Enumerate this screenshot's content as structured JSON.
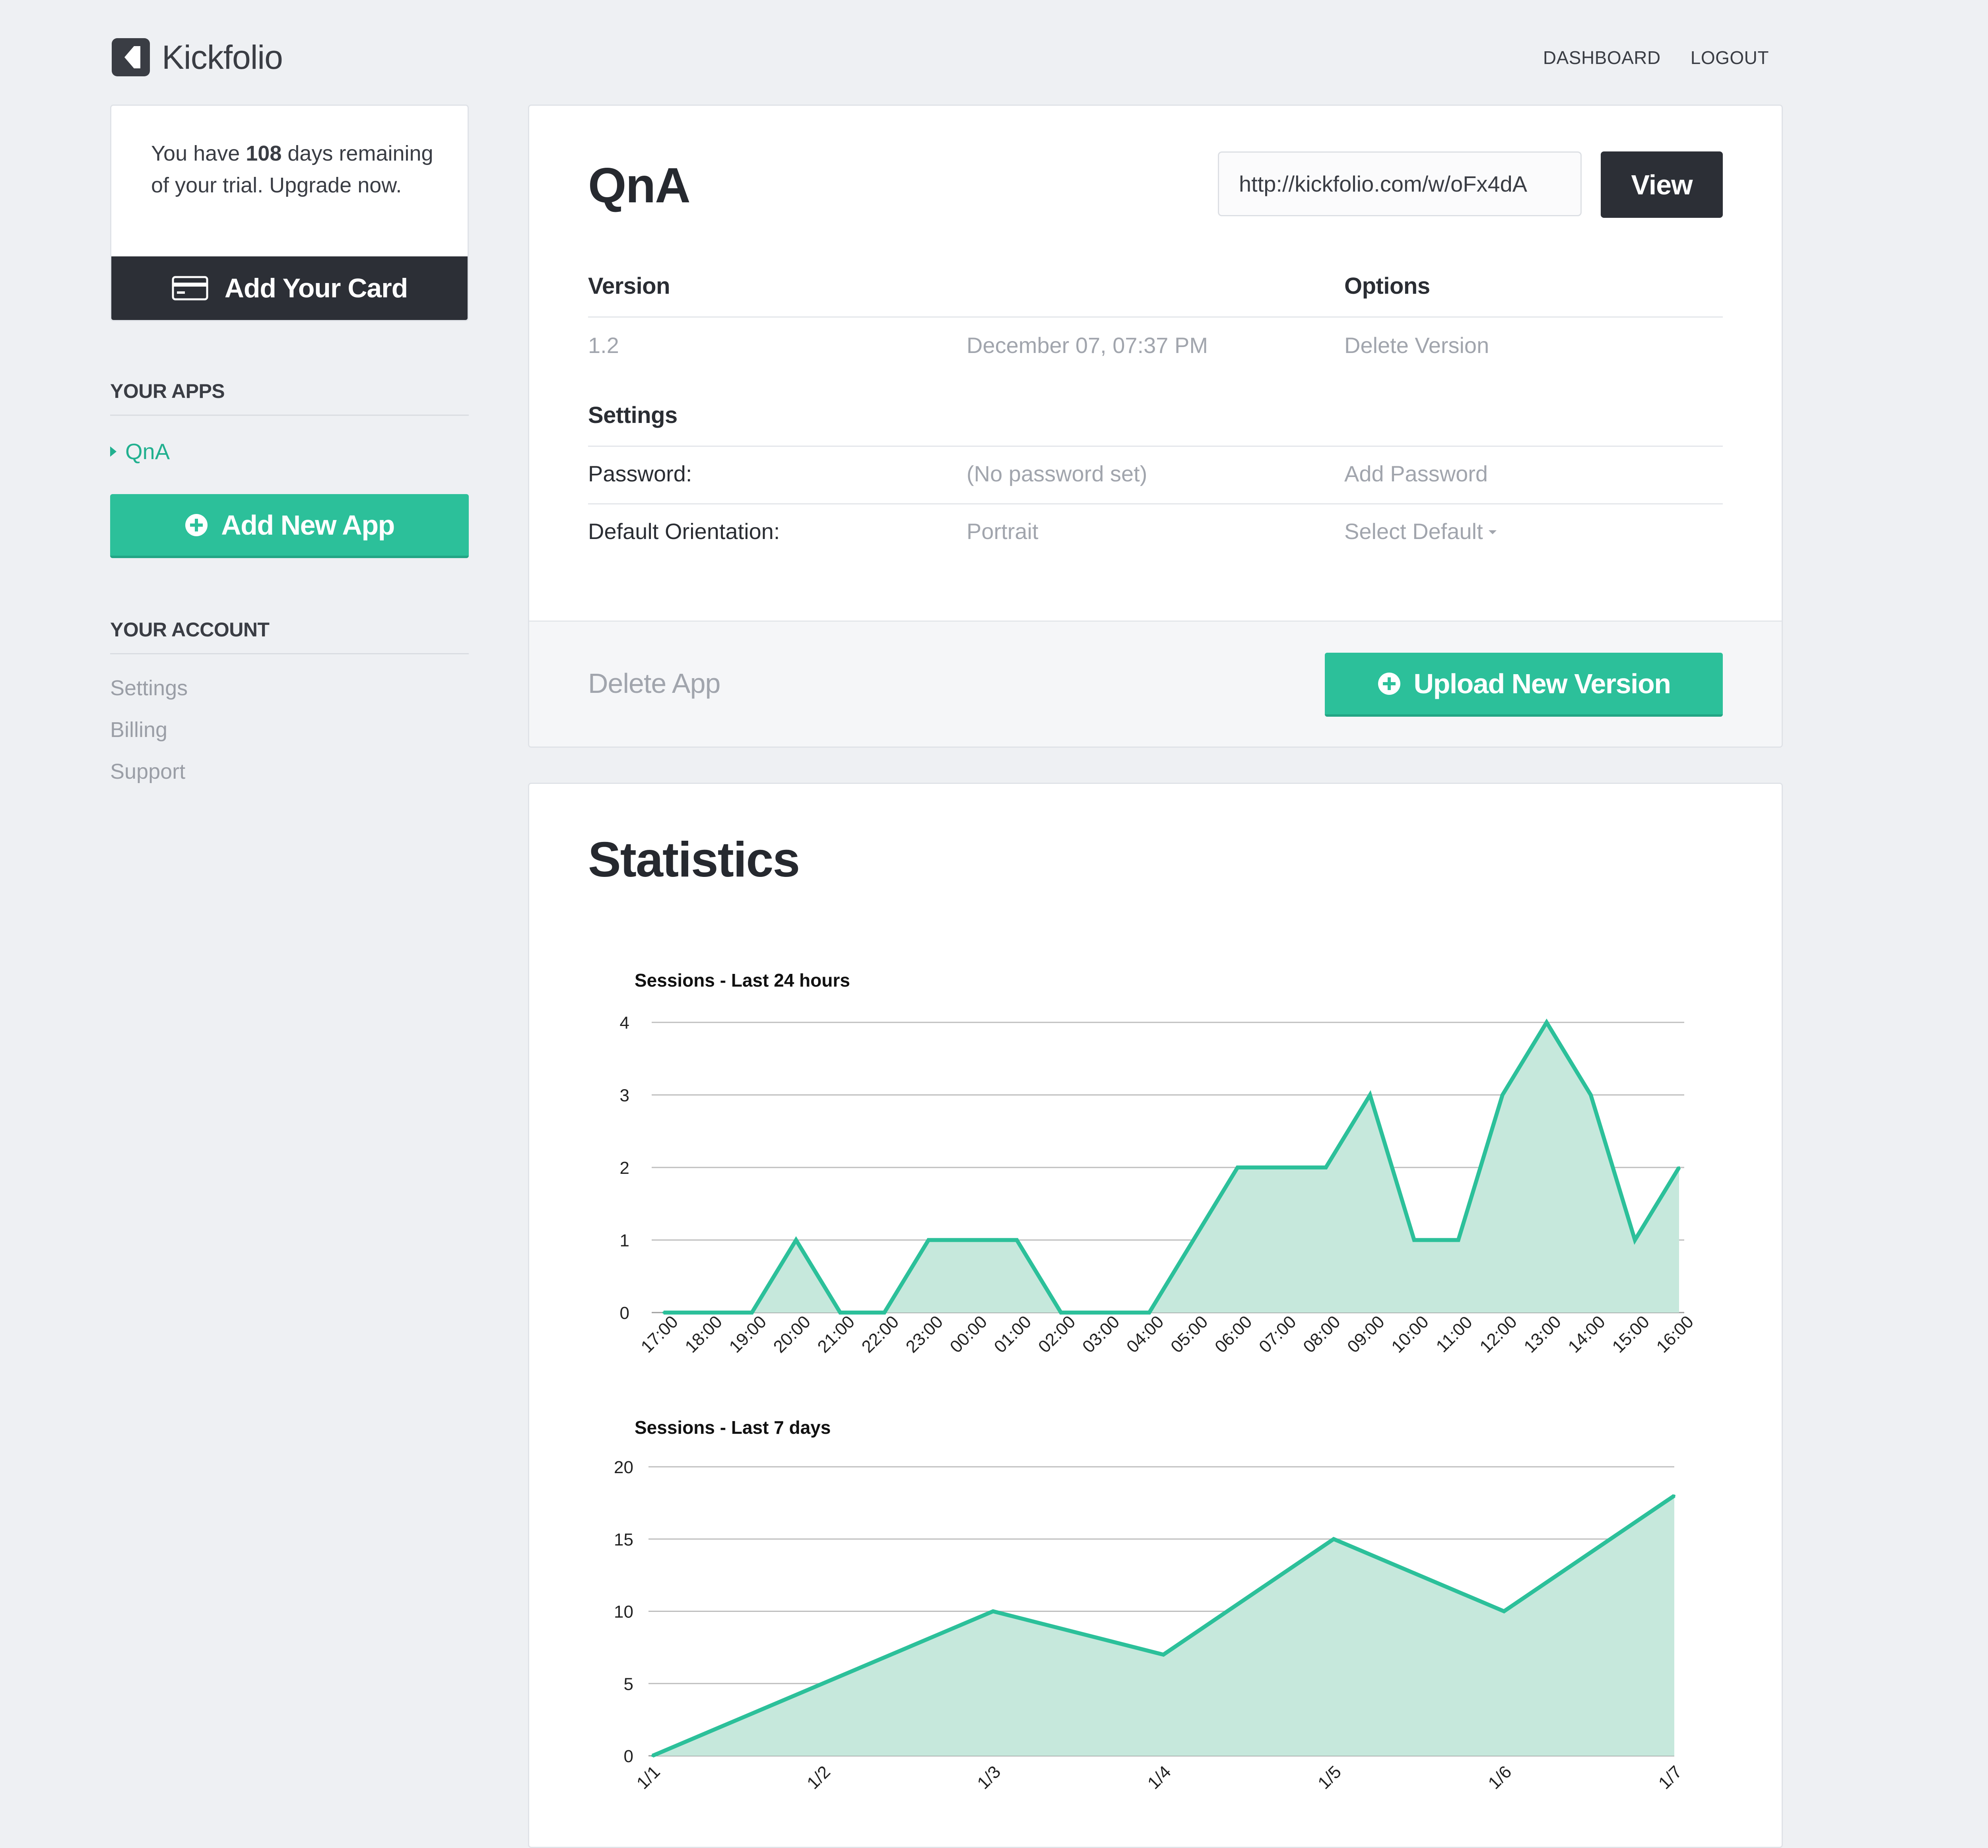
{
  "brand": {
    "name": "Kickfolio",
    "logo_icon": "kickfolio-logo-icon"
  },
  "nav": {
    "dashboard": "DASHBOARD",
    "logout": "LOGOUT"
  },
  "trial": {
    "prefix": "You have",
    "days": "108",
    "suffix": "days remaining of your trial. Upgrade now.",
    "add_card": "Add Your Card",
    "card_icon": "credit-card-icon"
  },
  "sidebar": {
    "apps_heading": "YOUR APPS",
    "apps": [
      "QnA"
    ],
    "add_app": "Add New App",
    "account_heading": "YOUR ACCOUNT",
    "account_links": [
      "Settings",
      "Billing",
      "Support"
    ]
  },
  "app": {
    "title": "QnA",
    "url": "http://kickfolio.com/w/oFx4dA",
    "view": "View",
    "version_heading": "Version",
    "options_heading": "Options",
    "version": "1.2",
    "version_date": "December 07, 07:37 PM",
    "delete_version": "Delete Version",
    "settings_heading": "Settings",
    "password_label": "Password:",
    "password_value": "(No password set)",
    "add_password": "Add Password",
    "orientation_label": "Default Orientation:",
    "orientation_value": "Portrait",
    "select_default": "Select Default",
    "delete_app": "Delete App",
    "upload": "Upload New Version"
  },
  "colors": {
    "accent": "#2cc09a",
    "dark": "#2c2f36",
    "fill": "#c6e8dc"
  },
  "stats": {
    "title": "Statistics"
  },
  "chart_data": [
    {
      "type": "area",
      "title": "Sessions - Last 24 hours",
      "x": [
        "17:00",
        "18:00",
        "19:00",
        "20:00",
        "21:00",
        "22:00",
        "23:00",
        "00:00",
        "01:00",
        "02:00",
        "03:00",
        "04:00",
        "05:00",
        "06:00",
        "07:00",
        "08:00",
        "09:00",
        "10:00",
        "11:00",
        "12:00",
        "13:00",
        "14:00",
        "15:00",
        "16:00"
      ],
      "values": [
        0,
        0,
        0,
        1,
        0,
        0,
        1,
        1,
        1,
        0,
        0,
        0,
        1,
        2,
        2,
        2,
        3,
        1,
        1,
        3,
        4,
        3,
        1,
        2
      ],
      "ylim": [
        0,
        4
      ],
      "yticks": [
        0,
        1,
        2,
        3,
        4
      ],
      "grid": true,
      "legend": "none"
    },
    {
      "type": "area",
      "title": "Sessions - Last 7 days",
      "x": [
        "1/1",
        "1/2",
        "1/3",
        "1/4",
        "1/5",
        "1/6",
        "1/7"
      ],
      "values": [
        0,
        5,
        10,
        7,
        15,
        10,
        18
      ],
      "ylim": [
        0,
        20
      ],
      "yticks": [
        0,
        5,
        10,
        15,
        20
      ],
      "grid": true,
      "legend": "none"
    }
  ]
}
